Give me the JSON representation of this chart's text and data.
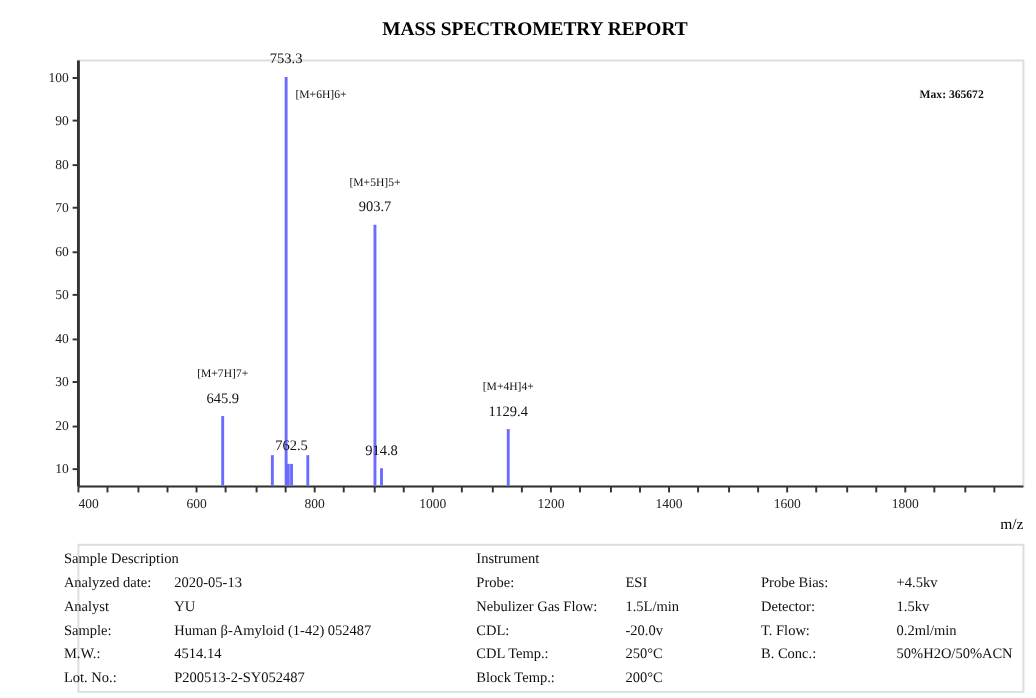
{
  "chart_data": {
    "type": "bar",
    "title": "MASS SPECTROMETRY REPORT",
    "xlabel": "m/z",
    "x": [
      645.9,
      730,
      753.3,
      757,
      762.5,
      790,
      903.7,
      914.8,
      1129.4
    ],
    "values": [
      22,
      13,
      100,
      11,
      11,
      13,
      66,
      10,
      19
    ],
    "color": "#6b6bff",
    "xlim": [
      400,
      2000
    ],
    "xticks": [
      400,
      {
        "value": 450,
        "label": null
      },
      {
        "value": 500,
        "label": null
      },
      {
        "value": 550,
        "label": null
      },
      600,
      {
        "value": 650,
        "label": null
      },
      {
        "value": 700,
        "label": null
      },
      {
        "value": 750,
        "label": null
      },
      800,
      {
        "value": 850,
        "label": null
      },
      {
        "value": 900,
        "label": null
      },
      {
        "value": 950,
        "label": null
      },
      1000,
      {
        "value": 1050,
        "label": null
      },
      {
        "value": 1100,
        "label": null
      },
      {
        "value": 1150,
        "label": null
      },
      1200,
      {
        "value": 1250,
        "label": null
      },
      {
        "value": 1300,
        "label": null
      },
      {
        "value": 1350,
        "label": null
      },
      1400,
      {
        "value": 1450,
        "label": null
      },
      {
        "value": 1500,
        "label": null
      },
      {
        "value": 1550,
        "label": null
      },
      1600,
      {
        "value": 1650,
        "label": null
      },
      {
        "value": 1700,
        "label": null
      },
      {
        "value": 1750,
        "label": null
      },
      1800,
      {
        "value": 1850,
        "label": null
      },
      {
        "value": 1900,
        "label": null
      },
      {
        "value": 1950,
        "label": null
      }
    ],
    "ylim": [
      6,
      104
    ],
    "yticks": [
      10,
      20,
      30,
      40,
      50,
      60,
      70,
      80,
      90,
      100
    ],
    "annotations": [
      {
        "text": "645.9",
        "x": 645.9,
        "y": 22
      },
      {
        "text": "[M+7H]7+",
        "x": 645.9,
        "y": 22
      },
      {
        "text": "753.3",
        "x": 753.3,
        "y": 100
      },
      {
        "text": "[M+6H]6+",
        "x": 753.3,
        "y": 100
      },
      {
        "text": "762.5",
        "x": 762.5,
        "y": 11
      },
      {
        "text": "903.7",
        "x": 903.7,
        "y": 66
      },
      {
        "text": "[M+5H]5+",
        "x": 903.7,
        "y": 66
      },
      {
        "text": "914.8",
        "x": 914.8,
        "y": 10
      },
      {
        "text": "1129.4",
        "x": 1129.4,
        "y": 19
      },
      {
        "text": "[M+4H]4+",
        "x": 1129.4,
        "y": 19
      },
      "Max: 365672",
      "Sample Description",
      "Instrument",
      "Analyzed date:",
      "2020-05-13",
      "Probe:",
      "ESI",
      "Probe Bias:",
      "+4.5kv",
      "Analyst",
      "YU",
      "Nebulizer Gas Flow:",
      "1.5L/min",
      "Detector:",
      "1.5kv",
      "Sample:",
      "Human β-Amyloid (1-42)   052487",
      "CDL:",
      "-20.0v",
      "T. Flow:",
      "0.2ml/min",
      "M.W.:",
      "4514.14",
      "CDL Temp.:",
      "250°C",
      "B. Conc.:",
      "50%H2O/50%ACN",
      "Lot. No.:",
      "P200513-2-SY052487",
      "Block Temp.:",
      "200°C"
    ]
  }
}
